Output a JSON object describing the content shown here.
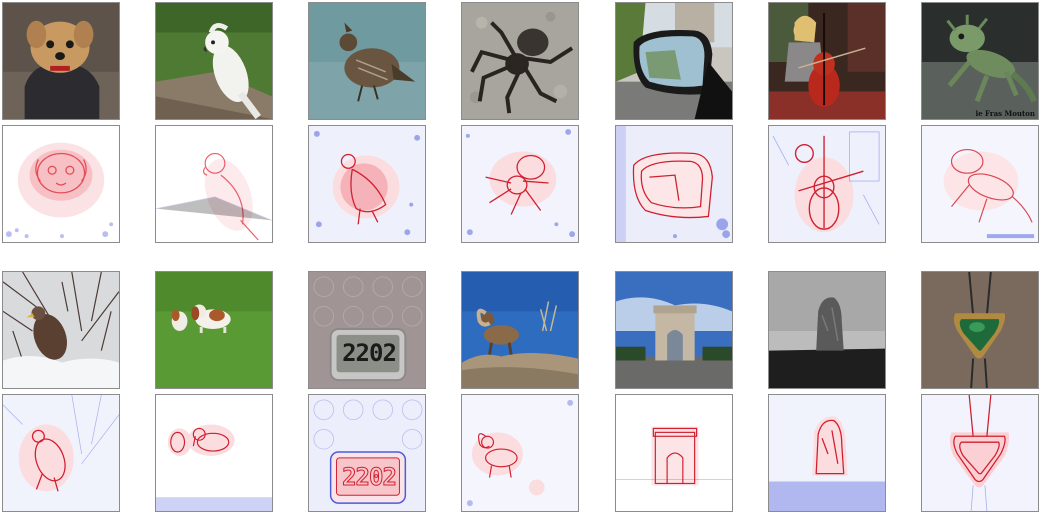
{
  "photos": {
    "lizard_caption": "le Fras Mouton",
    "clock_display": "2202"
  },
  "palette": {
    "heat_red": "#e0303c",
    "heat_blue": "#3a4cd8",
    "grass_green": "#5aa03a",
    "sky_blue": "#3a6fc0"
  }
}
